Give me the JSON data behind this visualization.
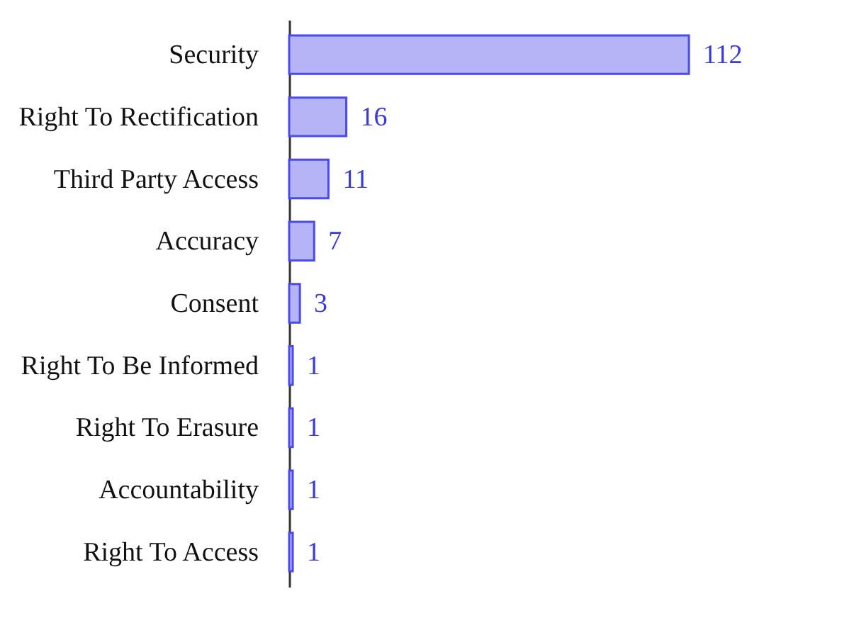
{
  "chart_data": {
    "type": "bar",
    "orientation": "horizontal",
    "categories": [
      "Security",
      "Right To Rectification",
      "Third Party Access",
      "Accuracy",
      "Consent",
      "Right To Be Informed",
      "Right To Erasure",
      "Accountability",
      "Right To Access"
    ],
    "values": [
      112,
      16,
      11,
      7,
      3,
      1,
      1,
      1,
      1
    ],
    "color": "#b4b4f7",
    "data_labels": true
  }
}
